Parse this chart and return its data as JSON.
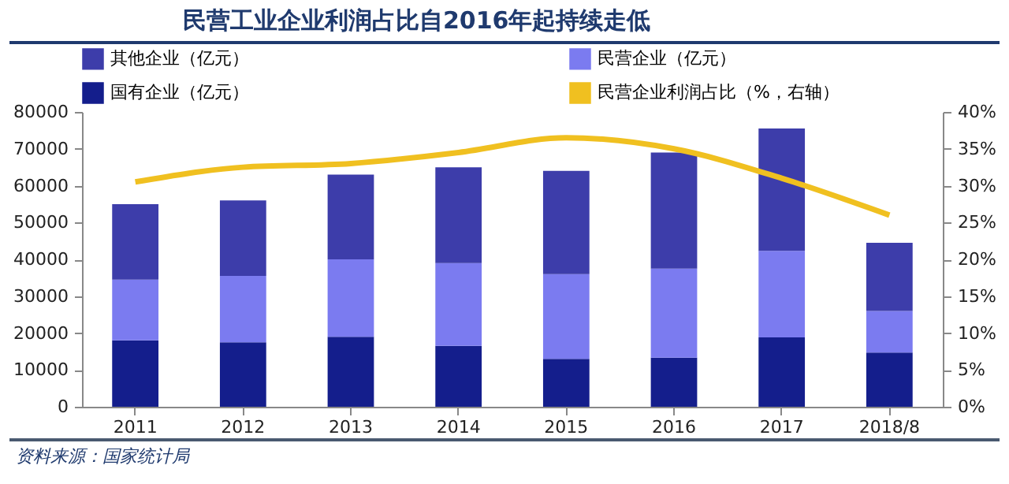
{
  "chart_data": {
    "type": "bar",
    "title": "民营工业企业利润占比自2016年起持续走低",
    "annotations": [
      "资料来源：国家统计局"
    ],
    "categories": [
      "2011",
      "2012",
      "2013",
      "2014",
      "2015",
      "2016",
      "2017",
      "2018/8"
    ],
    "stacked": true,
    "legend": "top",
    "grid": false,
    "marker": "none",
    "series": [
      {
        "name": "国有企业（亿元）",
        "color": "#141e8c",
        "values": [
          18000,
          17500,
          19000,
          16500,
          13000,
          13300,
          18800,
          14700
        ]
      },
      {
        "name": "民营企业（亿元）",
        "color": "#7b7bf0",
        "values": [
          16500,
          18000,
          21000,
          22500,
          23000,
          24200,
          23500,
          11300
        ]
      },
      {
        "name": "其他企业（亿元）",
        "color": "#3d3daa",
        "values": [
          20500,
          20500,
          23000,
          26000,
          28000,
          31500,
          33200,
          18500
        ]
      },
      {
        "name": "民营企业利润占比（%，右轴）",
        "color": "#f0c020",
        "type": "line",
        "axis": "y2",
        "values": [
          30.5,
          32.5,
          33,
          34.5,
          36.5,
          35,
          31,
          26
        ]
      }
    ],
    "ylim": [
      0,
      80000
    ],
    "yticks": [
      0,
      10000,
      20000,
      30000,
      40000,
      50000,
      60000,
      70000,
      80000
    ],
    "y2lim": [
      0,
      40
    ],
    "y2ticks": [
      {
        "value": 0,
        "label": "0%"
      },
      {
        "value": 5,
        "label": "5%"
      },
      {
        "value": 10,
        "label": "10%"
      },
      {
        "value": 15,
        "label": "15%"
      },
      {
        "value": 20,
        "label": "20%"
      },
      {
        "value": 25,
        "label": "25%"
      },
      {
        "value": 30,
        "label": "30%"
      },
      {
        "value": 35,
        "label": "35%"
      },
      {
        "value": 40,
        "label": "40%"
      }
    ]
  }
}
